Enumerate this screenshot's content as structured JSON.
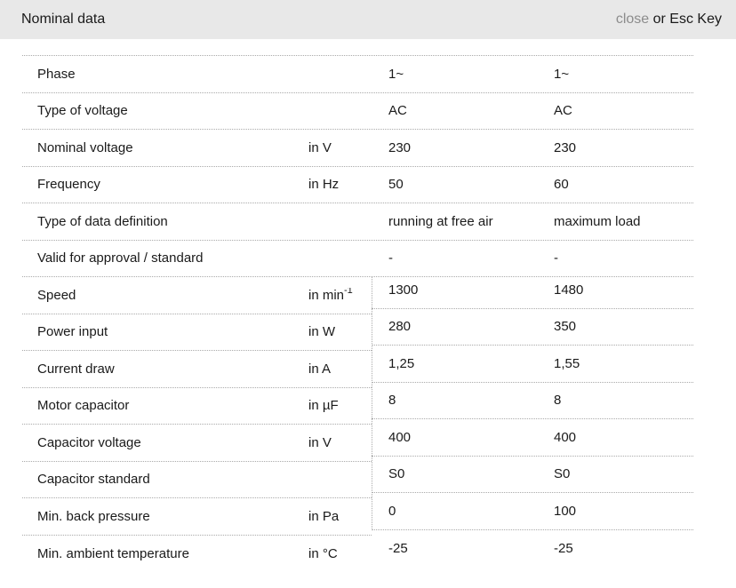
{
  "header": {
    "title": "Nominal data",
    "close_label": "close",
    "close_suffix": " or Esc Key"
  },
  "colors": {
    "header_bg": "#e8e8e8",
    "text": "#1a1a1a",
    "muted_link": "#8c8c8c",
    "separator": "#aaaaaa"
  },
  "table": {
    "top_rows": [
      {
        "label": "Phase",
        "unit": "",
        "v1": "1~",
        "v2": "1~"
      },
      {
        "label": "Type of voltage",
        "unit": "",
        "v1": "AC",
        "v2": "AC"
      },
      {
        "label": "Nominal voltage",
        "unit": "in V",
        "v1": "230",
        "v2": "230"
      },
      {
        "label": "Frequency",
        "unit": "in Hz",
        "v1": "50",
        "v2": "60"
      },
      {
        "label": "Type of data definition",
        "unit": "",
        "v1": "running at free air",
        "v2": "maximum load"
      },
      {
        "label": "Valid for approval / standard",
        "unit": "",
        "v1": "-",
        "v2": "-"
      }
    ],
    "bottom_rows": [
      {
        "label": "Speed",
        "unit": "in min",
        "unit_sup": "-1",
        "v1": "1300",
        "v2": "1480"
      },
      {
        "label": "Power input",
        "unit": "in W",
        "v1": "280",
        "v2": "350"
      },
      {
        "label": "Current draw",
        "unit": "in A",
        "v1": "1,25",
        "v2": "1,55"
      },
      {
        "label": "Motor capacitor",
        "unit": "in µF",
        "v1": "8",
        "v2": "8"
      },
      {
        "label": "Capacitor voltage",
        "unit": "in V",
        "v1": "400",
        "v2": "400"
      },
      {
        "label": "Capacitor standard",
        "unit": "",
        "v1": "S0",
        "v2": "S0"
      },
      {
        "label": "Min. back pressure",
        "unit": "in Pa",
        "v1": "0",
        "v2": "100"
      },
      {
        "label": "Min. ambient temperature",
        "unit": "in °C",
        "v1": "-25",
        "v2": "-25"
      }
    ]
  }
}
